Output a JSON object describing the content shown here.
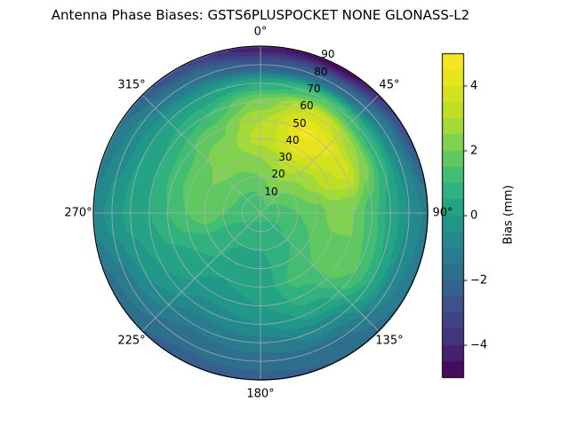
{
  "title": "Antenna Phase Biases: GSTS6PLUSPOCKET NONE GLONASS-L2",
  "colors": {
    "background": "#ffffff",
    "grid_line": "#b0b0b0",
    "axis_outline": "#000000"
  },
  "chart_data": {
    "type": "heatmap",
    "projection": "polar",
    "title": "Antenna Phase Biases: GSTS6PLUSPOCKET NONE GLONASS-L2",
    "azimuth_tick_labels": [
      "0°",
      "45°",
      "90°",
      "135°",
      "180°",
      "225°",
      "270°",
      "315°"
    ],
    "radial_tick_labels": [
      "10",
      "20",
      "30",
      "40",
      "50",
      "60",
      "70",
      "80",
      "90"
    ],
    "radial_label_azimuth_deg": 22.5,
    "radial_range": [
      0,
      90
    ],
    "contour_level_step_mm": 0.5,
    "colorbar": {
      "label": "Bias (mm)",
      "ticks": [
        -4,
        -2,
        0,
        2,
        4
      ],
      "min": -5,
      "max": 5,
      "colormap": "viridis"
    },
    "grid": {
      "azimuth_deg": [
        0,
        30,
        60,
        90,
        120,
        150,
        180,
        210,
        240,
        270,
        300,
        330
      ],
      "radius": [
        0,
        10,
        20,
        30,
        40,
        50,
        60,
        70,
        80,
        90
      ],
      "bias_mm": [
        [
          1.2,
          1.5,
          2.0,
          2.5,
          3.2,
          3.0,
          2.2,
          0.5,
          -2.5,
          -4.5
        ],
        [
          1.2,
          1.8,
          2.5,
          3.2,
          4.2,
          4.6,
          3.8,
          1.5,
          -2.0,
          -4.8
        ],
        [
          1.2,
          1.5,
          2.0,
          2.6,
          3.4,
          3.8,
          2.5,
          0.8,
          -1.0,
          -2.8
        ],
        [
          1.2,
          1.2,
          1.5,
          1.8,
          2.2,
          2.0,
          1.2,
          0.3,
          -0.5,
          -1.2
        ],
        [
          1.2,
          1.0,
          1.2,
          1.5,
          1.8,
          2.0,
          1.5,
          0.5,
          -0.8,
          -1.5
        ],
        [
          1.2,
          0.8,
          0.8,
          1.0,
          1.2,
          0.8,
          0.2,
          -0.8,
          -1.6,
          -2.0
        ],
        [
          1.2,
          0.8,
          0.5,
          0.3,
          0.2,
          0.0,
          -0.5,
          -1.2,
          -1.8,
          -2.2
        ],
        [
          1.2,
          0.8,
          0.5,
          0.3,
          0.0,
          -0.3,
          -0.8,
          -1.4,
          -1.9,
          -2.2
        ],
        [
          1.2,
          1.0,
          0.8,
          0.8,
          0.5,
          0.3,
          0.0,
          -0.5,
          -1.2,
          -1.8
        ],
        [
          1.2,
          1.2,
          1.5,
          1.8,
          1.5,
          1.0,
          0.5,
          0.2,
          -0.3,
          -0.8
        ],
        [
          1.2,
          1.3,
          1.8,
          2.0,
          1.8,
          1.2,
          0.5,
          0.0,
          -0.8,
          -1.5
        ],
        [
          1.2,
          1.4,
          1.8,
          2.2,
          2.2,
          1.8,
          1.0,
          0.0,
          -1.5,
          -3.0
        ]
      ]
    }
  }
}
